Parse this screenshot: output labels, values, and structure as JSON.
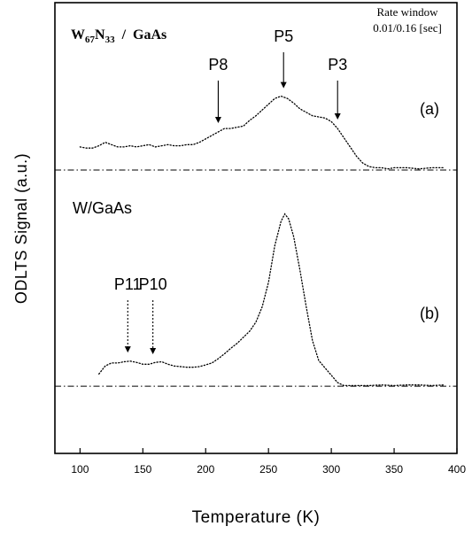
{
  "chart_data": {
    "type": "line",
    "title": "",
    "xlabel": "Temperature (K)",
    "ylabel": "ODLTS Signal (a.u.)",
    "xlim": [
      80,
      400
    ],
    "xticks": [
      100,
      150,
      200,
      250,
      300,
      350,
      400
    ],
    "y_ticks_shown": false,
    "grid": false,
    "rate_window": {
      "line1": "Rate window",
      "line2": "0.01/0.16 [sec]"
    },
    "panels": [
      {
        "id": "a",
        "panel_label": "(a)",
        "sample_label_main": "W",
        "sample_label_sub1": "67",
        "sample_label_mid": "N",
        "sample_label_sub2": "33",
        "sample_label_tail": "  /  GaAs",
        "baseline": 0,
        "ylim": [
          -0.1,
          1.45
        ],
        "series": [
          {
            "x": [
              100,
              105,
              110,
              115,
              120,
              125,
              130,
              135,
              140,
              145,
              150,
              155,
              160,
              165,
              170,
              175,
              180,
              185,
              190,
              195,
              200,
              205,
              210,
              215,
              220,
              225,
              230,
              235,
              240,
              245,
              250,
              255,
              260,
              265,
              270,
              275,
              280,
              285,
              290,
              295,
              300,
              305,
              310,
              315,
              320,
              325,
              330,
              335,
              340,
              345,
              350,
              360,
              370,
              380,
              390
            ],
            "y": [
              0.2,
              0.19,
              0.19,
              0.21,
              0.24,
              0.22,
              0.2,
              0.2,
              0.21,
              0.2,
              0.21,
              0.22,
              0.2,
              0.21,
              0.22,
              0.21,
              0.21,
              0.22,
              0.22,
              0.24,
              0.27,
              0.3,
              0.33,
              0.36,
              0.36,
              0.37,
              0.38,
              0.43,
              0.47,
              0.52,
              0.57,
              0.62,
              0.64,
              0.62,
              0.58,
              0.53,
              0.5,
              0.47,
              0.46,
              0.45,
              0.42,
              0.36,
              0.28,
              0.2,
              0.12,
              0.06,
              0.03,
              0.02,
              0.02,
              0.01,
              0.02,
              0.02,
              0.01,
              0.02,
              0.02
            ]
          }
        ],
        "annotations": [
          {
            "label": "P8",
            "x": 210
          },
          {
            "label": "P5",
            "x": 262
          },
          {
            "label": "P3",
            "x": 305
          }
        ]
      },
      {
        "id": "b",
        "panel_label": "(b)",
        "sample_label": "W/GaAs",
        "baseline": 0,
        "ylim": [
          -1.1,
          3.35
        ],
        "series": [
          {
            "x": [
              115,
              120,
              125,
              130,
              135,
              140,
              145,
              150,
              155,
              160,
              165,
              170,
              175,
              180,
              185,
              190,
              195,
              200,
              205,
              210,
              215,
              220,
              225,
              230,
              235,
              240,
              245,
              250,
              255,
              260,
              263,
              266,
              270,
              275,
              280,
              285,
              290,
              295,
              300,
              305,
              310,
              320,
              330,
              340,
              350,
              360,
              370,
              380,
              390
            ],
            "y": [
              0.2,
              0.33,
              0.38,
              0.38,
              0.4,
              0.41,
              0.39,
              0.36,
              0.36,
              0.39,
              0.4,
              0.36,
              0.33,
              0.32,
              0.31,
              0.31,
              0.32,
              0.35,
              0.38,
              0.45,
              0.53,
              0.62,
              0.7,
              0.8,
              0.9,
              1.05,
              1.3,
              1.7,
              2.3,
              2.7,
              2.82,
              2.74,
              2.45,
              1.9,
              1.3,
              0.75,
              0.42,
              0.3,
              0.18,
              0.06,
              0.01,
              0.01,
              0.01,
              0.02,
              0.01,
              0.02,
              0.02,
              0.01,
              0.02
            ]
          }
        ],
        "annotations": [
          {
            "label": "P11",
            "x": 138
          },
          {
            "label": "P10",
            "x": 158
          }
        ]
      }
    ]
  }
}
